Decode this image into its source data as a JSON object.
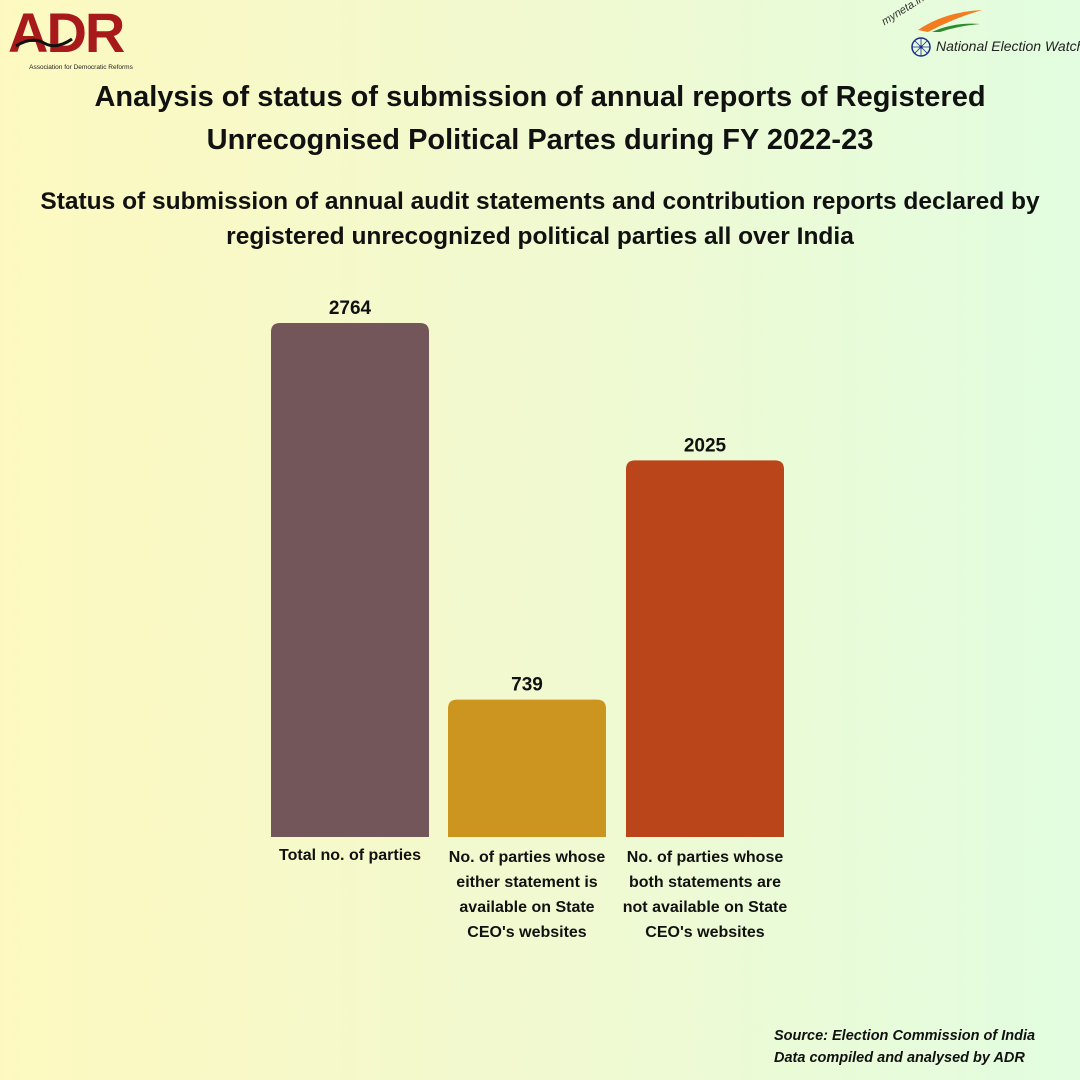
{
  "header": {
    "adr_logo_text": "ADR",
    "adr_logo_subtitle": "Association for Democratic Reforms",
    "new_logo_site": "myneta.info",
    "new_logo_text": "National Election Watch"
  },
  "title": "Analysis of status of submission of annual reports of Registered Unrecognised Political Partes during FY 2022-23",
  "subtitle": "Status of submission of annual audit statements and contribution reports declared by registered unrecognized political parties all over India",
  "chart_data": {
    "type": "bar",
    "title": "Status of submission of annual audit statements and contribution reports declared by registered unrecognized political parties all over India",
    "categories": [
      "Total no. of parties",
      "No. of parties whose either statement is available on State CEO's websites",
      "No. of parties whose both statements are not available on State CEO's websites"
    ],
    "values": [
      2764,
      739,
      2025
    ],
    "colors": [
      "#735659",
      "#cb951f",
      "#ba451b"
    ],
    "xlabel": "",
    "ylabel": "",
    "ylim": [
      0,
      2764
    ],
    "grid": false,
    "legend": "none"
  },
  "footer": {
    "source": "Source: Election Commission of India",
    "compiled": "Data compiled and analysed by ADR"
  }
}
